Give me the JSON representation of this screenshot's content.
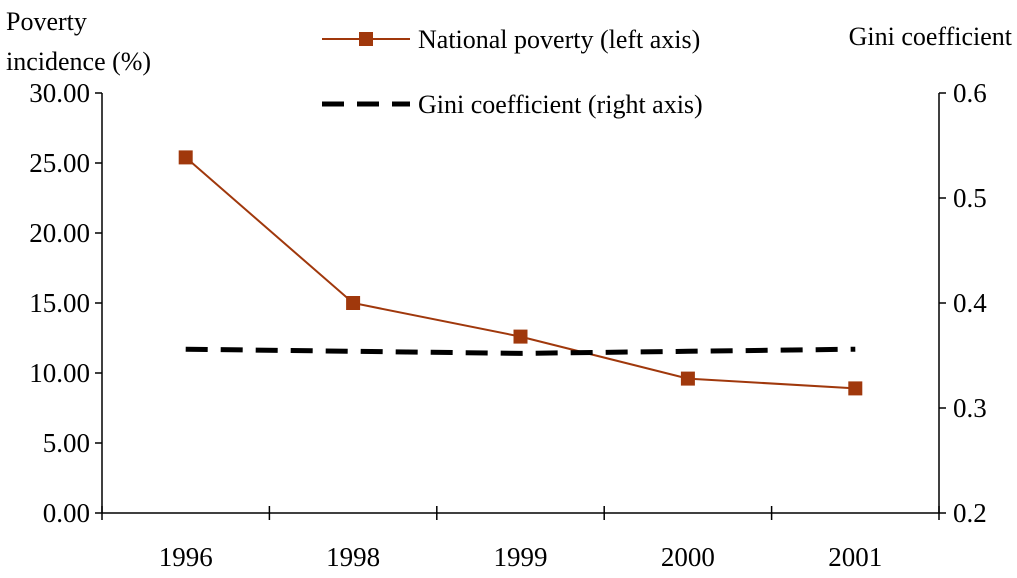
{
  "chart_data": {
    "type": "line",
    "categories": [
      "1996",
      "1998",
      "1999",
      "2000",
      "2001"
    ],
    "left_axis": {
      "title_lines": [
        "Poverty",
        "incidence (%)"
      ],
      "range": [
        0,
        30
      ],
      "ticks": [
        "0.00",
        "5.00",
        "10.00",
        "15.00",
        "20.00",
        "25.00",
        "30.00"
      ]
    },
    "right_axis": {
      "title": "Gini coefficient",
      "range": [
        0.2,
        0.6
      ],
      "ticks": [
        "0.2",
        "0.3",
        "0.4",
        "0.5",
        "0.6"
      ]
    },
    "series": [
      {
        "name": "National poverty (left axis)",
        "axis": "left",
        "values": [
          25.4,
          15.0,
          12.6,
          9.6,
          8.9
        ],
        "color": "#a0380c",
        "marker": "square",
        "line_style": "solid"
      },
      {
        "name": "Gini coefficient (right axis)",
        "axis": "right",
        "values": [
          0.356,
          0.354,
          0.352,
          0.354,
          0.356
        ],
        "color": "#000000",
        "marker": "none",
        "line_style": "dashed"
      }
    ],
    "legend_position": "top-center",
    "grid": false
  }
}
